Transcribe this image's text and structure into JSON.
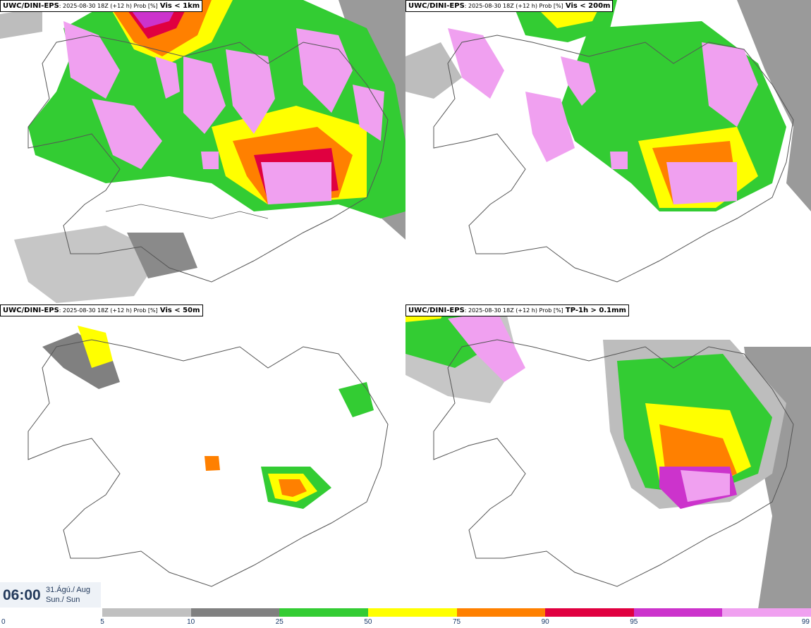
{
  "panels": [
    {
      "model": "UWC/DINI-EPS",
      "meta": ": 2025-08-30 18Z (+12 h) Prob [%]",
      "variable": "Vis < 1km"
    },
    {
      "model": "UWC/DINI-EPS",
      "meta": ": 2025-08-30 18Z (+12 h) Prob [%]",
      "variable": "Vis < 200m"
    },
    {
      "model": "UWC/DINI-EPS",
      "meta": ": 2025-08-30 18Z (+12 h) Prob [%]",
      "variable": "Vis < 50m"
    },
    {
      "model": "UWC/DINI-EPS",
      "meta": ": 2025-08-30 18Z (+12 h) Prob [%]",
      "variable": "TP-1h > 0.1mm"
    }
  ],
  "valid_time": {
    "time": "06:00",
    "date_line1": "31.Ágú./ Aug",
    "date_line2": "Sun./ Sun"
  },
  "colorbar": {
    "ticks": [
      "0",
      "5",
      "10",
      "25",
      "50",
      "75",
      "90",
      "95",
      "99"
    ],
    "colors": [
      "#c0c0c0",
      "#808080",
      "#33cc33",
      "#ffff00",
      "#ff8000",
      "#e00040",
      "#cc33cc",
      "#f0a0f0"
    ]
  }
}
